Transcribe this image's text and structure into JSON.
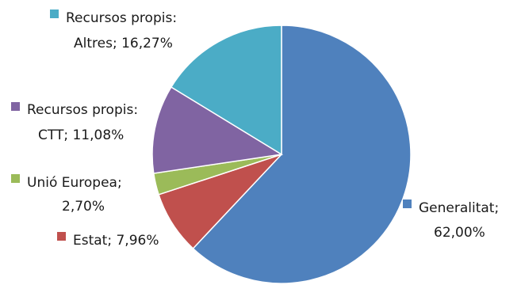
{
  "chart_data": {
    "type": "pie",
    "title": "",
    "slices": [
      {
        "name": "Generalitat",
        "value": 62.0,
        "value_label": "62,00%",
        "color": "#4F81BD"
      },
      {
        "name": "Estat",
        "value": 7.96,
        "value_label": "7,96%",
        "color": "#C0504D"
      },
      {
        "name": "Unió Europea",
        "value": 2.7,
        "value_label": "2,70%",
        "color": "#9BBB59"
      },
      {
        "name": "Recursos propis: CTT",
        "value": 11.08,
        "value_label": "11,08%",
        "color": "#8064A2"
      },
      {
        "name": "Recursos propis: Altres",
        "value": 16.27,
        "value_label": "16,27%",
        "color": "#4BACC6"
      }
    ],
    "labels": [
      {
        "line1": "Generalitat;",
        "line2": "62,00%"
      },
      {
        "line1": "Estat; 7,96%",
        "line2": ""
      },
      {
        "line1": "Unió Europea;",
        "line2": "2,70%"
      },
      {
        "line1": "Recursos propis:",
        "line2": "CTT; 11,08%"
      },
      {
        "line1": "Recursos propis:",
        "line2": "Altres; 16,27%"
      }
    ],
    "legend": "none",
    "start_angle": "12 o'clock, clockwise"
  }
}
